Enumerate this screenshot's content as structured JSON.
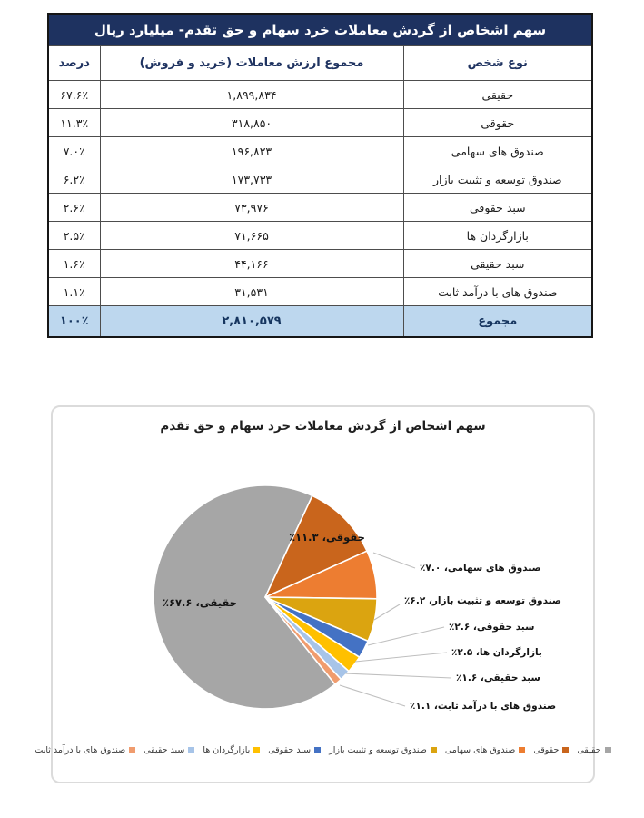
{
  "table": {
    "title": "سهم اشخاص از گردش معاملات خرد سهام و حق تقدم- میلیارد ریال",
    "columns": {
      "type": "نوع شخص",
      "value": "مجموع ارزش معاملات (خرید و فروش)",
      "pct": "درصد"
    },
    "rows": [
      {
        "type": "حقیقی",
        "value": "۱,۸۹۹,۸۳۴",
        "pct": "۶۷.۶٪"
      },
      {
        "type": "حقوقی",
        "value": "۳۱۸,۸۵۰",
        "pct": "۱۱.۳٪"
      },
      {
        "type": "صندوق های سهامی",
        "value": "۱۹۶,۸۲۳",
        "pct": "۷.۰٪"
      },
      {
        "type": "صندوق توسعه و تثبیت بازار",
        "value": "۱۷۳,۷۳۳",
        "pct": "۶.۲٪"
      },
      {
        "type": "سبد حقوقی",
        "value": "۷۳,۹۷۶",
        "pct": "۲.۶٪"
      },
      {
        "type": "بازارگردان ها",
        "value": "۷۱,۶۶۵",
        "pct": "۲.۵٪"
      },
      {
        "type": "سبد حقیقی",
        "value": "۴۴,۱۶۶",
        "pct": "۱.۶٪"
      },
      {
        "type": "صندوق های با درآمد ثابت",
        "value": "۳۱,۵۳۱",
        "pct": "۱.۱٪"
      }
    ],
    "total": {
      "type": "مجموع",
      "value": "۲,۸۱۰,۵۷۹",
      "pct": "۱۰۰٪"
    }
  },
  "chart_data": {
    "type": "pie",
    "title": "سهم اشخاص از گردش معاملات خرد سهام و حق تقدم",
    "start_angle_deg": 141.3,
    "direction": "clockwise",
    "legend_position": "bottom",
    "slices": [
      {
        "label": "حقیقی",
        "value": 67.6,
        "value_billion_rial": 1899834,
        "color": "#A6A6A6",
        "data_label": "حقیقی، ۶۷.۶٪",
        "label_placement": "inside"
      },
      {
        "label": "حقوقی",
        "value": 11.3,
        "value_billion_rial": 318850,
        "color": "#C9651C",
        "data_label": "حقوقی، ۱۱.۳٪",
        "label_placement": "inside"
      },
      {
        "label": "صندوق های سهامی",
        "value": 7.0,
        "value_billion_rial": 196823,
        "color": "#ED7D31",
        "data_label": "صندوق های سهامی، ۷.۰٪",
        "label_placement": "callout"
      },
      {
        "label": "صندوق توسعه و تثبیت بازار",
        "value": 6.2,
        "value_billion_rial": 173733,
        "color": "#DBA410",
        "data_label": "صندوق توسعه و تثبیت بازار، ۶.۲٪",
        "label_placement": "callout"
      },
      {
        "label": "سبد حقوقی",
        "value": 2.6,
        "value_billion_rial": 73976,
        "color": "#4472C4",
        "data_label": "سبد حقوقی، ۲.۶٪",
        "label_placement": "callout"
      },
      {
        "label": "بازارگردان ها",
        "value": 2.5,
        "value_billion_rial": 71665,
        "color": "#FFC000",
        "data_label": "بازارگردان ها، ۲.۵٪",
        "label_placement": "callout"
      },
      {
        "label": "سبد حقیقی",
        "value": 1.6,
        "value_billion_rial": 44166,
        "color": "#A7C4E8",
        "data_label": "سبد حقیقی، ۱.۶٪",
        "label_placement": "callout"
      },
      {
        "label": "صندوق های با درآمد ثابت",
        "value": 1.1,
        "value_billion_rial": 31531,
        "color": "#F09C6E",
        "data_label": "صندوق های با درآمد ثابت، ۱.۱٪",
        "label_placement": "callout"
      }
    ]
  },
  "colors": {
    "table_title_bg": "#1E3260",
    "table_title_text": "#FFFFFF",
    "table_header_text": "#1E3260",
    "total_row_bg": "#BDD7EE",
    "leader_line": "#BFBFBF",
    "chart_border": "#DBDBDB"
  }
}
